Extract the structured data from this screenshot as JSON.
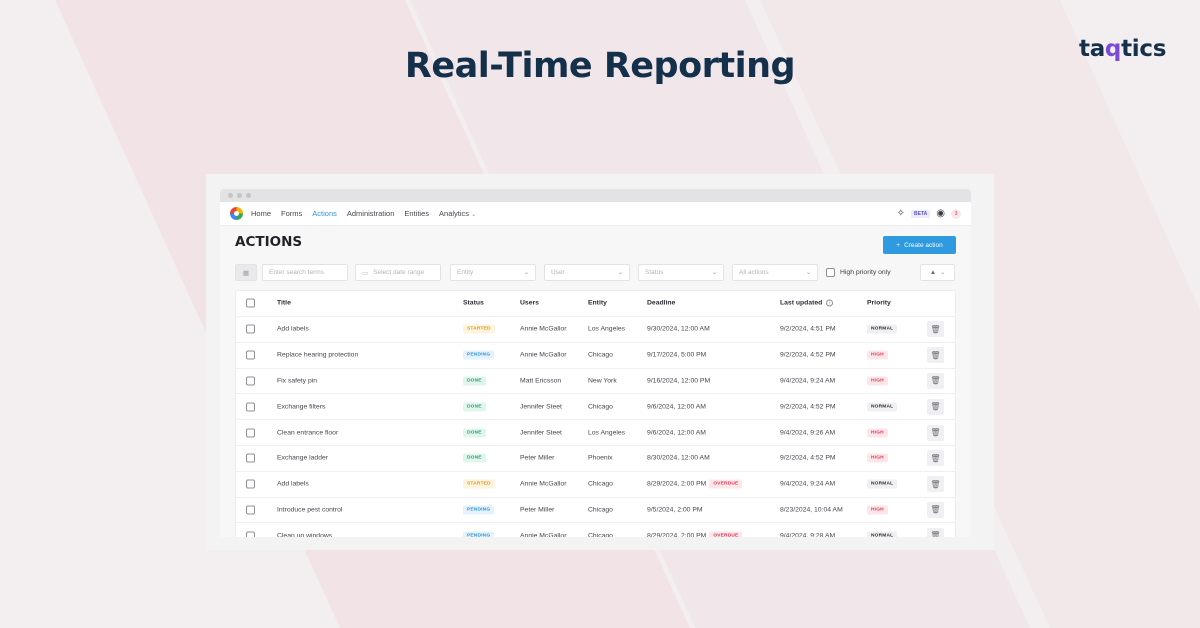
{
  "headline": "Real-Time Reporting",
  "brand": {
    "pre": "ta",
    "accent": "q",
    "post": "tics"
  },
  "colors": {
    "accent": "#2f93d6",
    "title": "#15304b",
    "brand_accent": "#7a4bd8"
  },
  "nav": {
    "items": [
      "Home",
      "Forms",
      "Actions",
      "Administration",
      "Entities",
      "Analytics"
    ],
    "active": "Actions",
    "beta_label": "BETA",
    "notification_count": "3",
    "icons": [
      "puzzle-icon",
      "user-circle-icon"
    ]
  },
  "page": {
    "title": "ACTIONS",
    "create_button": "Create action"
  },
  "filters": {
    "search_placeholder": "Enter search terms",
    "date_placeholder": "Select date range",
    "entity": "Entity",
    "user": "User",
    "status": "Status",
    "all_actions": "All actions",
    "high_priority_label": "High priority only"
  },
  "table": {
    "headers": {
      "title": "Title",
      "status": "Status",
      "users": "Users",
      "entity": "Entity",
      "deadline": "Deadline",
      "updated": "Last updated",
      "priority": "Priority"
    },
    "rows": [
      {
        "title": "Add labels",
        "status": "STARTED",
        "status_kind": "started",
        "user": "Annie McGallor",
        "entity": "Los Angeles",
        "deadline": "9/30/2024, 12:00 AM",
        "overdue": "",
        "updated": "9/2/2024, 4:51 PM",
        "priority": "NORMAL",
        "priority_kind": "normal"
      },
      {
        "title": "Replace hearing protection",
        "status": "PENDING",
        "status_kind": "pending",
        "user": "Annie McGallor",
        "entity": "Chicago",
        "deadline": "9/17/2024, 5:00 PM",
        "overdue": "",
        "updated": "9/2/2024, 4:52 PM",
        "priority": "HIGH",
        "priority_kind": "high"
      },
      {
        "title": "Fix safety pin",
        "status": "DONE",
        "status_kind": "done",
        "user": "Matt Ericsson",
        "entity": "New York",
        "deadline": "9/16/2024, 12:00 PM",
        "overdue": "",
        "updated": "9/4/2024, 9:24 AM",
        "priority": "HIGH",
        "priority_kind": "high"
      },
      {
        "title": "Exchange filters",
        "status": "DONE",
        "status_kind": "done",
        "user": "Jennifer Steet",
        "entity": "Chicago",
        "deadline": "9/6/2024, 12:00 AM",
        "overdue": "",
        "updated": "9/2/2024, 4:52 PM",
        "priority": "NORMAL",
        "priority_kind": "normal"
      },
      {
        "title": "Clean entrance floor",
        "status": "DONE",
        "status_kind": "done",
        "user": "Jennifer Steet",
        "entity": "Los Angeles",
        "deadline": "9/6/2024, 12:00 AM",
        "overdue": "",
        "updated": "9/4/2024, 9:26 AM",
        "priority": "HIGH",
        "priority_kind": "high"
      },
      {
        "title": "Exchange ladder",
        "status": "DONE",
        "status_kind": "done",
        "user": "Peter Miller",
        "entity": "Phoenix",
        "deadline": "8/30/2024, 12:00 AM",
        "overdue": "",
        "updated": "9/2/2024, 4:52 PM",
        "priority": "HIGH",
        "priority_kind": "high"
      },
      {
        "title": "Add labels",
        "status": "STARTED",
        "status_kind": "started",
        "user": "Annie McGallor",
        "entity": "Chicago",
        "deadline": "8/29/2024, 2:00 PM",
        "overdue": "OVERDUE",
        "updated": "9/4/2024, 9:24 AM",
        "priority": "NORMAL",
        "priority_kind": "normal"
      },
      {
        "title": "Introduce pest control",
        "status": "PENDING",
        "status_kind": "pending",
        "user": "Peter Miller",
        "entity": "Chicago",
        "deadline": "9/5/2024, 2:00 PM",
        "overdue": "",
        "updated": "8/23/2024, 10:04 AM",
        "priority": "HIGH",
        "priority_kind": "high"
      },
      {
        "title": "Clean up windows",
        "status": "PENDING",
        "status_kind": "pending",
        "user": "Annie McGallor",
        "entity": "Chicago",
        "deadline": "8/29/2024, 2:00 PM",
        "overdue": "OVERDUE",
        "updated": "9/4/2024, 9:28 AM",
        "priority": "NORMAL",
        "priority_kind": "normal"
      }
    ]
  }
}
